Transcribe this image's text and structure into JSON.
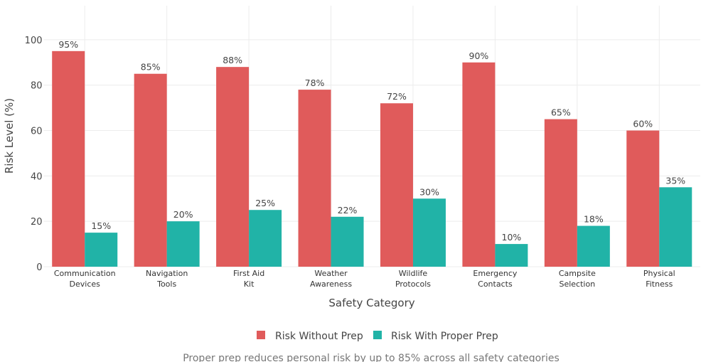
{
  "chart_data": {
    "type": "bar",
    "categories": [
      [
        "Communication",
        "Devices"
      ],
      [
        "Navigation",
        "Tools"
      ],
      [
        "First Aid",
        "Kit"
      ],
      [
        "Weather",
        "Awareness"
      ],
      [
        "Wildlife",
        "Protocols"
      ],
      [
        "Emergency",
        "Contacts"
      ],
      [
        "Campsite",
        "Selection"
      ],
      [
        "Physical",
        "Fitness"
      ]
    ],
    "series": [
      {
        "name": "Risk Without Prep",
        "values": [
          95,
          85,
          88,
          78,
          72,
          90,
          65,
          60
        ],
        "color": "#e05b5b"
      },
      {
        "name": "Risk With Proper Prep",
        "values": [
          15,
          20,
          25,
          22,
          30,
          10,
          18,
          35
        ],
        "color": "#21b3a7"
      }
    ],
    "data_label_suffix": "%",
    "xlabel": "Safety Category",
    "ylabel": "Risk Level (%)",
    "ylim": [
      0,
      115
    ],
    "yticks": [
      0,
      20,
      40,
      60,
      80,
      100
    ],
    "grid": true,
    "legend": "bottom-center",
    "subtitle": "Proper prep reduces personal risk by up to 85% across all safety categories"
  }
}
